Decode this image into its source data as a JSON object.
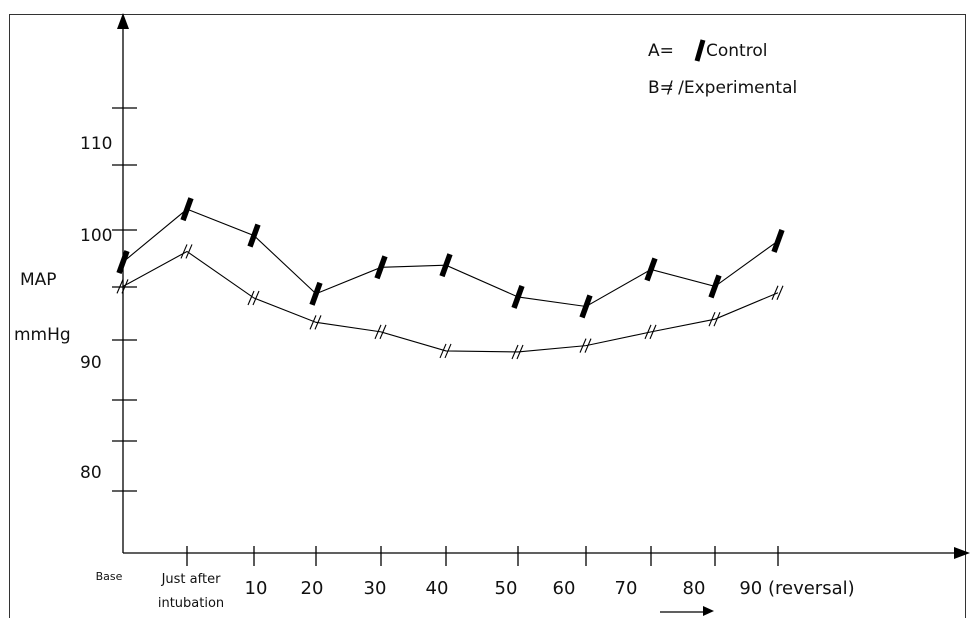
{
  "chart_data": {
    "type": "line",
    "categories": [
      "Base",
      "Just after intubation",
      "10",
      "20",
      "30",
      "40",
      "50",
      "60",
      "70",
      "80",
      "90 (reversal)"
    ],
    "x_tick_labels": [
      [
        "Base"
      ],
      [
        "Just after",
        "intubation"
      ],
      [
        "10"
      ],
      [
        "20"
      ],
      [
        "30"
      ],
      [
        "40"
      ],
      [
        "50"
      ],
      [
        "60"
      ],
      [
        "70"
      ],
      [
        "80"
      ],
      [
        "90 (reversal)"
      ]
    ],
    "ylabel": [
      "MAP",
      "mmHg"
    ],
    "y_ticks": [
      80,
      90,
      100,
      110
    ],
    "ylim": [
      74,
      124
    ],
    "series": [
      {
        "key": "A",
        "name": "Control",
        "marker": "bar",
        "color": "#000000",
        "values": [
          101.5,
          106.5,
          104,
          98.5,
          101,
          101.2,
          98.2,
          97.3,
          100.8,
          99.2,
          103.5
        ]
      },
      {
        "key": "B",
        "name": "Experimental",
        "marker": "double-slash",
        "color": "#000000",
        "values": [
          99.2,
          102.5,
          98.1,
          95.8,
          94.9,
          93.1,
          93.0,
          93.6,
          94.9,
          96.1,
          98.6
        ]
      }
    ],
    "legend": {
      "placement": "top-right",
      "entries": [
        {
          "prefix": "A=",
          "label": "Control"
        },
        {
          "prefix": "B=",
          "label": "/ /Experimental"
        }
      ]
    },
    "grid": false
  }
}
